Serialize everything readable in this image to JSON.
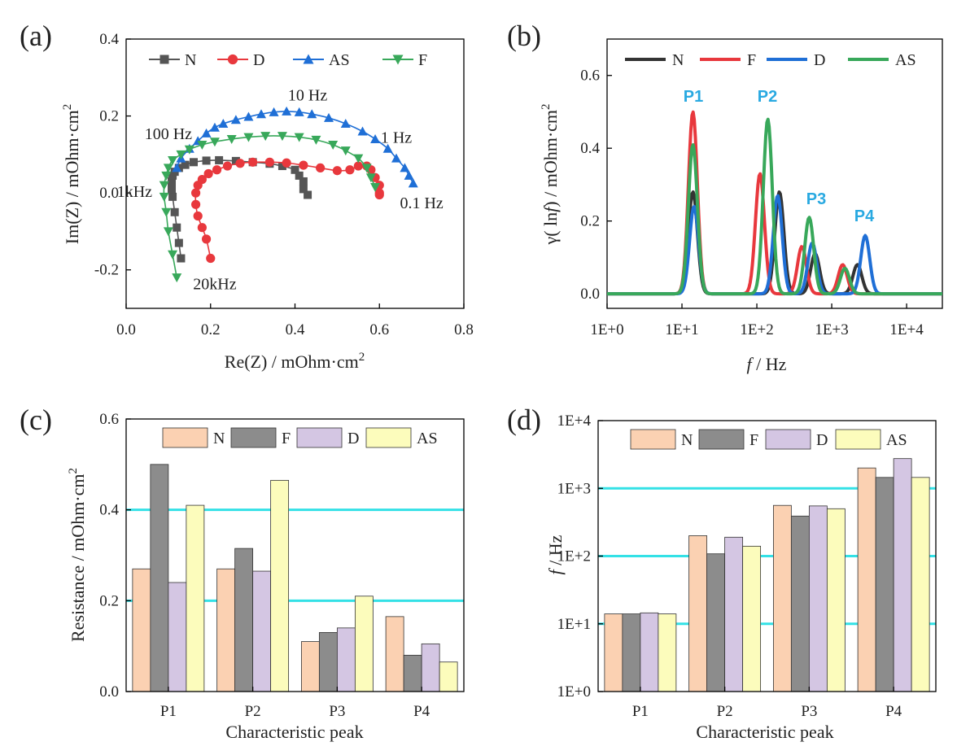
{
  "chart_data": [
    {
      "panel": "(a)",
      "type": "scatter",
      "xlabel": "Re(Z) / mOhm·cm",
      "ylabel": "Im(Z) / mOhm·cm",
      "label_sup": "2",
      "xlim": [
        0.0,
        0.8
      ],
      "ylim": [
        -0.3,
        0.4
      ],
      "xticks": [
        "0.0",
        "0.2",
        "0.4",
        "0.6",
        "0.8"
      ],
      "yticks": [
        "-0.2",
        "0.0",
        "0.2",
        "0.4"
      ],
      "legend": [
        "N",
        "D",
        "AS",
        "F"
      ],
      "annotations": [
        {
          "text": "10 Hz",
          "x": 0.43,
          "y": 0.24
        },
        {
          "text": "100 Hz",
          "x": 0.1,
          "y": 0.14
        },
        {
          "text": "1 Hz",
          "x": 0.64,
          "y": 0.13
        },
        {
          "text": "1kHz",
          "x": 0.02,
          "y": -0.01
        },
        {
          "text": "0.1 Hz",
          "x": 0.7,
          "y": -0.04
        },
        {
          "text": "20kHz",
          "x": 0.21,
          "y": -0.25
        }
      ],
      "series": [
        {
          "name": "N",
          "color": "#555555",
          "marker": "square",
          "x": [
            0.13,
            0.125,
            0.12,
            0.115,
            0.11,
            0.108,
            0.108,
            0.11,
            0.115,
            0.125,
            0.14,
            0.16,
            0.19,
            0.22,
            0.26,
            0.3,
            0.34,
            0.37,
            0.4,
            0.41,
            0.42,
            0.42,
            0.43
          ],
          "y": [
            -0.17,
            -0.13,
            -0.09,
            -0.05,
            -0.01,
            0.01,
            0.03,
            0.045,
            0.055,
            0.065,
            0.073,
            0.08,
            0.084,
            0.085,
            0.083,
            0.08,
            0.076,
            0.07,
            0.06,
            0.045,
            0.03,
            0.01,
            -0.005
          ]
        },
        {
          "name": "D",
          "color": "#e8383d",
          "marker": "circle",
          "x": [
            0.2,
            0.19,
            0.18,
            0.17,
            0.165,
            0.165,
            0.17,
            0.18,
            0.195,
            0.215,
            0.24,
            0.27,
            0.3,
            0.34,
            0.38,
            0.42,
            0.46,
            0.5,
            0.53,
            0.55,
            0.57,
            0.58,
            0.59,
            0.6,
            0.6,
            0.6
          ],
          "y": [
            -0.17,
            -0.12,
            -0.09,
            -0.06,
            -0.03,
            0.0,
            0.02,
            0.035,
            0.05,
            0.06,
            0.07,
            0.077,
            0.08,
            0.08,
            0.078,
            0.072,
            0.065,
            0.058,
            0.06,
            0.07,
            0.07,
            0.06,
            0.04,
            0.02,
            0.0,
            -0.005
          ]
        },
        {
          "name": "AS",
          "color": "#1f6fd6",
          "marker": "triangle-up",
          "x": [
            0.12,
            0.13,
            0.15,
            0.17,
            0.19,
            0.21,
            0.23,
            0.26,
            0.29,
            0.32,
            0.35,
            0.38,
            0.41,
            0.44,
            0.48,
            0.52,
            0.56,
            0.59,
            0.62,
            0.64,
            0.66,
            0.67,
            0.68
          ],
          "y": [
            0.065,
            0.09,
            0.115,
            0.135,
            0.155,
            0.17,
            0.18,
            0.19,
            0.198,
            0.205,
            0.21,
            0.212,
            0.21,
            0.205,
            0.195,
            0.18,
            0.16,
            0.14,
            0.115,
            0.09,
            0.065,
            0.045,
            0.025
          ]
        },
        {
          "name": "F",
          "color": "#38a85a",
          "marker": "triangle-down",
          "x": [
            0.12,
            0.11,
            0.1,
            0.095,
            0.09,
            0.09,
            0.095,
            0.1,
            0.11,
            0.13,
            0.15,
            0.18,
            0.21,
            0.25,
            0.29,
            0.33,
            0.37,
            0.41,
            0.45,
            0.49,
            0.52,
            0.55,
            0.57,
            0.58,
            0.59
          ],
          "y": [
            -0.22,
            -0.16,
            -0.1,
            -0.05,
            -0.01,
            0.02,
            0.045,
            0.065,
            0.085,
            0.1,
            0.113,
            0.125,
            0.133,
            0.14,
            0.145,
            0.148,
            0.148,
            0.145,
            0.138,
            0.125,
            0.11,
            0.09,
            0.065,
            0.04,
            0.015
          ]
        }
      ]
    },
    {
      "panel": "(b)",
      "type": "line",
      "xlabel": "f",
      "xlabel_suffix": " / Hz",
      "ylabel": "γ( ln",
      "ylabel_italic": "f",
      "ylabel_suffix": ") / mOhm·cm",
      "label_sup": "2",
      "xscale": "log",
      "xlim": [
        1,
        30000
      ],
      "ylim": [
        -0.04,
        0.7
      ],
      "xticks": [
        "1E+0",
        "1E+1",
        "1E+2",
        "1E+3",
        "1E+4"
      ],
      "yticks": [
        "0.0",
        "0.2",
        "0.4",
        "0.6"
      ],
      "legend": [
        "N",
        "F",
        "D",
        "AS"
      ],
      "peak_labels": [
        "P1",
        "P2",
        "P3",
        "P4"
      ],
      "series": [
        {
          "name": "N",
          "color": "#333333",
          "peaks": [
            [
              14,
              0.28
            ],
            [
              200,
              0.28
            ],
            [
              600,
              0.11
            ],
            [
              2200,
              0.08
            ]
          ]
        },
        {
          "name": "F",
          "color": "#e8383d",
          "peaks": [
            [
              14,
              0.5
            ],
            [
              110,
              0.33
            ],
            [
              400,
              0.13
            ],
            [
              1400,
              0.08
            ]
          ]
        },
        {
          "name": "D",
          "color": "#1f6fd6",
          "peaks": [
            [
              14.5,
              0.24
            ],
            [
              190,
              0.27
            ],
            [
              550,
              0.14
            ],
            [
              2800,
              0.16
            ]
          ]
        },
        {
          "name": "AS",
          "color": "#38a85a",
          "peaks": [
            [
              14,
              0.41
            ],
            [
              140,
              0.48
            ],
            [
              500,
              0.21
            ],
            [
              1500,
              0.07
            ]
          ]
        }
      ]
    },
    {
      "panel": "(c)",
      "type": "bar",
      "xlabel": "Characteristic peak",
      "ylabel": "Resistance / mOhm·cm",
      "label_sup": "2",
      "ylim": [
        0.0,
        0.6
      ],
      "yticks": [
        "0.0",
        "0.2",
        "0.4",
        "0.6"
      ],
      "categories": [
        "P1",
        "P2",
        "P3",
        "P4"
      ],
      "reference_lines": [
        0.2,
        0.4
      ],
      "series": [
        {
          "name": "N",
          "color": "#fbd1b2",
          "values": [
            0.27,
            0.27,
            0.11,
            0.165
          ]
        },
        {
          "name": "F",
          "color": "#8c8c8c",
          "values": [
            0.5,
            0.315,
            0.13,
            0.08
          ]
        },
        {
          "name": "D",
          "color": "#d4c6e3",
          "values": [
            0.24,
            0.265,
            0.14,
            0.105
          ]
        },
        {
          "name": "AS",
          "color": "#fcfcbc",
          "values": [
            0.41,
            0.465,
            0.21,
            0.065
          ]
        }
      ]
    },
    {
      "panel": "(d)",
      "type": "bar",
      "xlabel": "Characteristic peak",
      "ylabel": "f",
      "ylabel_suffix": " / Hz",
      "yscale": "log",
      "ylim": [
        1,
        10000
      ],
      "yticks": [
        "1E+0",
        "1E+1",
        "1E+2",
        "1E+3",
        "1E+4"
      ],
      "categories": [
        "P1",
        "P2",
        "P3",
        "P4"
      ],
      "reference_lines": [
        10,
        100,
        1000
      ],
      "series": [
        {
          "name": "N",
          "color": "#fbd1b2",
          "values": [
            14,
            200,
            560,
            2000
          ]
        },
        {
          "name": "F",
          "color": "#8c8c8c",
          "values": [
            14,
            108,
            390,
            1450
          ]
        },
        {
          "name": "D",
          "color": "#d4c6e3",
          "values": [
            14.5,
            190,
            550,
            2750
          ]
        },
        {
          "name": "AS",
          "color": "#fcfcbc",
          "values": [
            14,
            140,
            500,
            1450
          ]
        }
      ]
    }
  ]
}
